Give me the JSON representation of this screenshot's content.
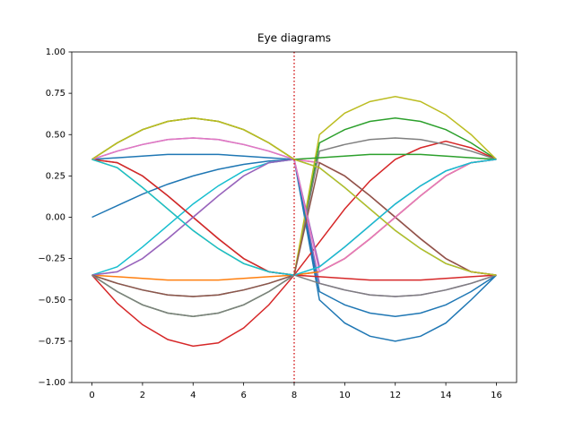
{
  "chart_data": {
    "type": "line",
    "title": "Eye diagrams",
    "x": [
      0,
      1,
      2,
      3,
      4,
      5,
      6,
      7,
      8,
      9,
      10,
      11,
      12,
      13,
      14,
      15,
      16
    ],
    "xlim": [
      -0.8,
      16.8
    ],
    "xticks": [
      0,
      2,
      4,
      6,
      8,
      10,
      12,
      14,
      16
    ],
    "ylim": [
      -1,
      1
    ],
    "yticks": [
      {
        "value": -1,
        "label": "−1.00"
      },
      {
        "value": -0.75,
        "label": "−0.75"
      },
      {
        "value": -0.5,
        "label": "−0.50"
      },
      {
        "value": -0.25,
        "label": "−0.25"
      },
      {
        "value": 0,
        "label": "0.00"
      },
      {
        "value": 0.25,
        "label": "0.25"
      },
      {
        "value": 0.5,
        "label": "0.50"
      },
      {
        "value": 0.75,
        "label": "0.75"
      },
      {
        "value": 1,
        "label": "1.00"
      }
    ],
    "vline": {
      "x": 8,
      "color": "#d62728"
    },
    "series": [
      {
        "color": "#1f77b4",
        "values": [
          0,
          0.07,
          0.14,
          0.2,
          0.25,
          0.29,
          0.32,
          0.34,
          0.35,
          -0.5,
          -0.64,
          -0.72,
          -0.75,
          -0.72,
          -0.64,
          -0.5,
          -0.35
        ]
      },
      {
        "color": "#ff7f0e",
        "values": [
          0.35,
          0.45,
          0.53,
          0.58,
          0.6,
          0.58,
          0.53,
          0.45,
          0.35,
          0.33,
          0.25,
          0.13,
          0,
          -0.13,
          -0.25,
          -0.33,
          -0.35
        ]
      },
      {
        "color": "#2ca02c",
        "values": [
          -0.35,
          -0.45,
          -0.53,
          -0.58,
          -0.6,
          -0.58,
          -0.53,
          -0.45,
          -0.35,
          0.45,
          0.53,
          0.58,
          0.6,
          0.58,
          0.53,
          0.45,
          0.35
        ]
      },
      {
        "color": "#d62728",
        "values": [
          -0.35,
          -0.52,
          -0.65,
          -0.74,
          -0.78,
          -0.76,
          -0.67,
          -0.53,
          -0.35,
          -0.15,
          0.05,
          0.22,
          0.35,
          0.42,
          0.46,
          0.42,
          0.35
        ]
      },
      {
        "color": "#9467bd",
        "values": [
          0.35,
          0.4,
          0.44,
          0.47,
          0.48,
          0.47,
          0.44,
          0.4,
          0.35,
          -0.4,
          -0.44,
          -0.47,
          -0.48,
          -0.47,
          -0.44,
          -0.4,
          -0.35
        ]
      },
      {
        "color": "#8c564b",
        "values": [
          0.35,
          0.33,
          0.25,
          0.13,
          0,
          -0.13,
          -0.25,
          -0.33,
          -0.35,
          -0.33,
          -0.25,
          -0.13,
          0,
          0.13,
          0.25,
          0.33,
          0.35
        ]
      },
      {
        "color": "#e377c2",
        "values": [
          -0.35,
          -0.33,
          -0.25,
          -0.13,
          0,
          0.13,
          0.25,
          0.33,
          0.35,
          0.33,
          0.25,
          0.13,
          0,
          -0.13,
          -0.25,
          -0.33,
          -0.35
        ]
      },
      {
        "color": "#7f7f7f",
        "values": [
          -0.35,
          -0.4,
          -0.44,
          -0.47,
          -0.48,
          -0.47,
          -0.44,
          -0.4,
          -0.35,
          0.4,
          0.44,
          0.47,
          0.48,
          0.47,
          0.44,
          0.4,
          0.35
        ]
      },
      {
        "color": "#bcbd22",
        "values": [
          0.35,
          0.3,
          0.18,
          0.05,
          -0.08,
          -0.19,
          -0.28,
          -0.33,
          -0.35,
          0.5,
          0.63,
          0.7,
          0.73,
          0.7,
          0.62,
          0.5,
          0.35
        ]
      },
      {
        "color": "#17becf",
        "values": [
          -0.35,
          -0.3,
          -0.18,
          -0.05,
          0.08,
          0.19,
          0.28,
          0.33,
          0.35,
          0.3,
          0.18,
          0.05,
          -0.08,
          -0.19,
          -0.28,
          -0.33,
          -0.35
        ]
      },
      {
        "color": "#1f77b4",
        "values": [
          0.35,
          0.36,
          0.37,
          0.38,
          0.38,
          0.38,
          0.37,
          0.36,
          0.35,
          -0.45,
          -0.53,
          -0.58,
          -0.6,
          -0.58,
          -0.53,
          -0.45,
          -0.35
        ]
      },
      {
        "color": "#ff7f0e",
        "values": [
          -0.35,
          -0.36,
          -0.37,
          -0.38,
          -0.38,
          -0.38,
          -0.37,
          -0.36,
          -0.35,
          -0.33,
          -0.25,
          -0.13,
          0,
          0.13,
          0.25,
          0.33,
          0.35
        ]
      },
      {
        "color": "#2ca02c",
        "values": [
          0.35,
          0.45,
          0.53,
          0.58,
          0.6,
          0.58,
          0.53,
          0.45,
          0.35,
          0.36,
          0.37,
          0.38,
          0.38,
          0.38,
          0.37,
          0.36,
          0.35
        ]
      },
      {
        "color": "#d62728",
        "values": [
          0.35,
          0.33,
          0.25,
          0.13,
          0,
          -0.13,
          -0.25,
          -0.33,
          -0.35,
          -0.36,
          -0.37,
          -0.38,
          -0.38,
          -0.38,
          -0.37,
          -0.36,
          -0.35
        ]
      },
      {
        "color": "#9467bd",
        "values": [
          -0.35,
          -0.33,
          -0.25,
          -0.13,
          0,
          0.13,
          0.25,
          0.33,
          0.35,
          -0.3,
          -0.18,
          -0.05,
          0.08,
          0.19,
          0.28,
          0.33,
          0.35
        ]
      },
      {
        "color": "#8c564b",
        "values": [
          -0.35,
          -0.4,
          -0.44,
          -0.47,
          -0.48,
          -0.47,
          -0.44,
          -0.4,
          -0.35,
          0.33,
          0.25,
          0.13,
          0,
          -0.13,
          -0.25,
          -0.33,
          -0.35
        ]
      },
      {
        "color": "#e377c2",
        "values": [
          0.35,
          0.4,
          0.44,
          0.47,
          0.48,
          0.47,
          0.44,
          0.4,
          0.35,
          -0.33,
          -0.25,
          -0.13,
          0,
          0.13,
          0.25,
          0.33,
          0.35
        ]
      },
      {
        "color": "#7f7f7f",
        "values": [
          -0.35,
          -0.45,
          -0.53,
          -0.58,
          -0.6,
          -0.58,
          -0.53,
          -0.45,
          -0.35,
          -0.4,
          -0.44,
          -0.47,
          -0.48,
          -0.47,
          -0.44,
          -0.4,
          -0.35
        ]
      },
      {
        "color": "#bcbd22",
        "values": [
          0.35,
          0.45,
          0.53,
          0.58,
          0.6,
          0.58,
          0.53,
          0.45,
          0.35,
          0.3,
          0.18,
          0.05,
          -0.08,
          -0.19,
          -0.28,
          -0.33,
          -0.35
        ]
      },
      {
        "color": "#17becf",
        "values": [
          0.35,
          0.3,
          0.18,
          0.05,
          -0.08,
          -0.19,
          -0.28,
          -0.33,
          -0.35,
          -0.3,
          -0.18,
          -0.05,
          0.08,
          0.19,
          0.28,
          0.33,
          0.35
        ]
      }
    ]
  }
}
